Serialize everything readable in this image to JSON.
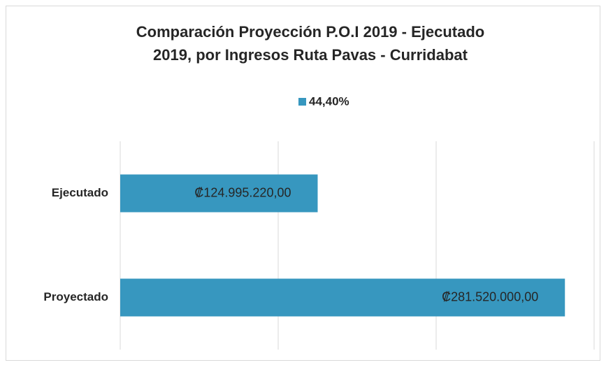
{
  "chart_data": {
    "type": "hbar",
    "title": [
      "Comparación Proyección P.O.I 2019 - Ejecutado",
      "2019, por Ingresos Ruta Pavas - Curridabat"
    ],
    "categories": [
      "Ejecutado",
      "Proyectado"
    ],
    "series": [
      {
        "name": "44,40%",
        "color": "#3797bf",
        "values": [
          124995220,
          281520000
        ],
        "value_labels": [
          "₡124.995.220,00",
          "₡281.520.000,00"
        ]
      }
    ],
    "xlim": [
      0,
      300000000
    ],
    "xticks": [
      0,
      100000000,
      200000000,
      300000000
    ],
    "grid": true,
    "legend": "top"
  }
}
